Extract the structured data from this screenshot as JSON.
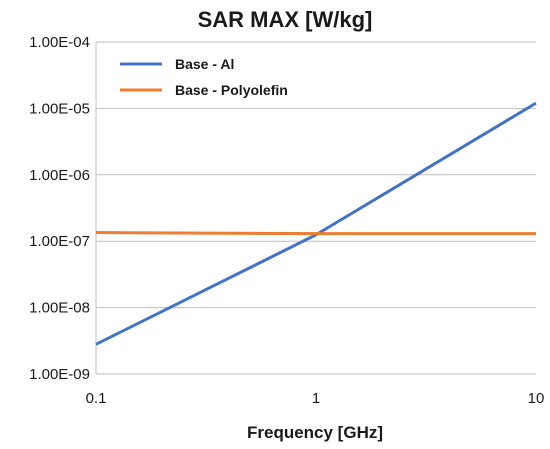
{
  "chart_data": {
    "type": "line",
    "title": "SAR MAX [W/kg]",
    "xlabel": "Frequency [GHz]",
    "ylabel": "",
    "x_scale": "log",
    "y_scale": "log",
    "xlim": [
      0.1,
      10
    ],
    "ylim": [
      1e-09,
      0.0001
    ],
    "x_ticks": [
      0.1,
      1,
      10
    ],
    "x_tick_labels": [
      "0.1",
      "1",
      "10"
    ],
    "y_ticks": [
      1e-09,
      1e-08,
      1e-07,
      1e-06,
      1e-05,
      0.0001
    ],
    "y_tick_labels": [
      "1.00E-09",
      "1.00E-08",
      "1.00E-07",
      "1.00E-06",
      "1.00E-05",
      "1.00E-04"
    ],
    "grid": "horizontal",
    "legend_position": "top-left",
    "series": [
      {
        "name": "Base - Al",
        "color": "#4472C4",
        "x": [
          0.1,
          1,
          10
        ],
        "y": [
          2.8e-09,
          1.25e-07,
          1.2e-05
        ]
      },
      {
        "name": "Base - Polyolefin",
        "color": "#ED7D31",
        "x": [
          0.1,
          1,
          10
        ],
        "y": [
          1.35e-07,
          1.3e-07,
          1.3e-07
        ]
      }
    ]
  }
}
